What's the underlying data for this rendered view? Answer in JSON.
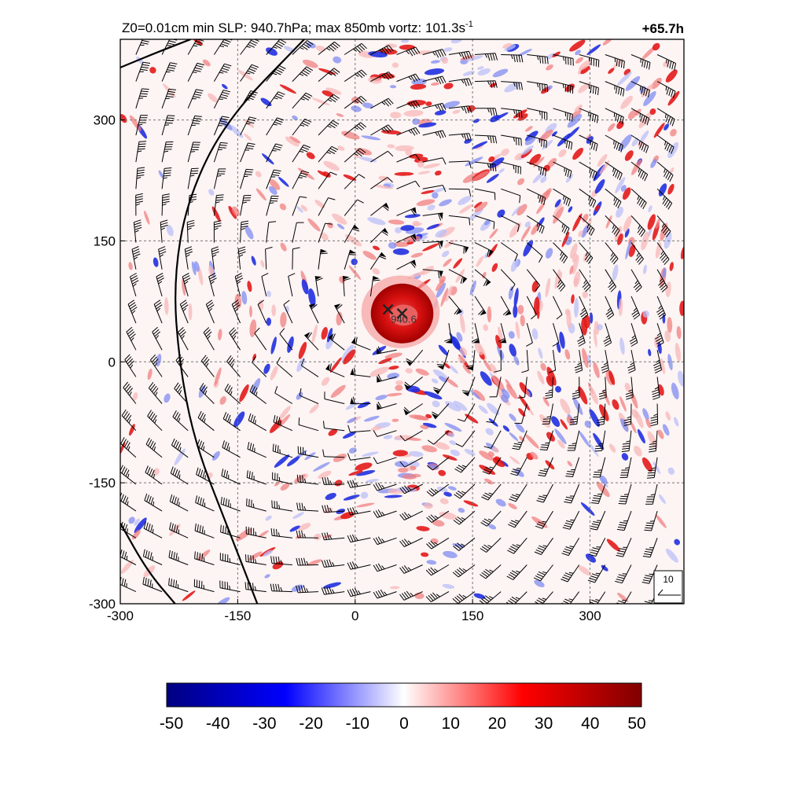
{
  "chart_data": [
    {
      "type": "heatmap",
      "title_main": "Z0=0.01cm  min SLP: 940.7hPa; max 850mb vortz: 101.3s",
      "title_sup": "-1",
      "forecast_hour": "+65.7h",
      "xlabel": "",
      "ylabel": "",
      "xlim": [
        -300,
        420
      ],
      "ylim": [
        -300,
        400
      ],
      "x_ticks": [
        -300,
        -150,
        0,
        150,
        300
      ],
      "y_ticks": [
        -300,
        -150,
        0,
        150,
        300
      ],
      "x_tick_labels": [
        "-300",
        "-150",
        "0",
        "150",
        "300"
      ],
      "y_tick_labels": [
        "-300",
        "-150",
        "0",
        "150",
        "300"
      ],
      "grid": true,
      "field": "850mb relative vorticity",
      "storm_center": {
        "x": 60,
        "y": 60,
        "label": "940.6"
      },
      "secondary_marker": {
        "x": 42,
        "y": 65
      },
      "contour_lines": [
        {
          "points": [
            [
              -125,
              -300
            ],
            [
              -165,
              -200
            ],
            [
              -205,
              -100
            ],
            [
              -225,
              0
            ],
            [
              -232,
              100
            ],
            [
              -215,
              200
            ],
            [
              -165,
              300
            ],
            [
              -65,
              400
            ]
          ]
        },
        {
          "points": [
            [
              -300,
              -200
            ],
            [
              -265,
              -260
            ],
            [
              -230,
              -300
            ]
          ]
        },
        {
          "points": [
            [
              -300,
              365
            ],
            [
              -250,
              385
            ],
            [
              -210,
              400
            ]
          ]
        }
      ],
      "wind_barbs": "cyclonic wind barbs on regular grid around storm center",
      "barb_legend_label": "10"
    },
    {
      "type": "colorbar",
      "range": [
        -50,
        50
      ],
      "colors": [
        "#000080",
        "#0000ff",
        "#ffffff",
        "#ff0000",
        "#800000"
      ],
      "tick_labels": [
        "-50",
        "-40",
        "-30",
        "-20",
        "-10",
        "0",
        "10",
        "20",
        "30",
        "40",
        "50"
      ]
    }
  ]
}
